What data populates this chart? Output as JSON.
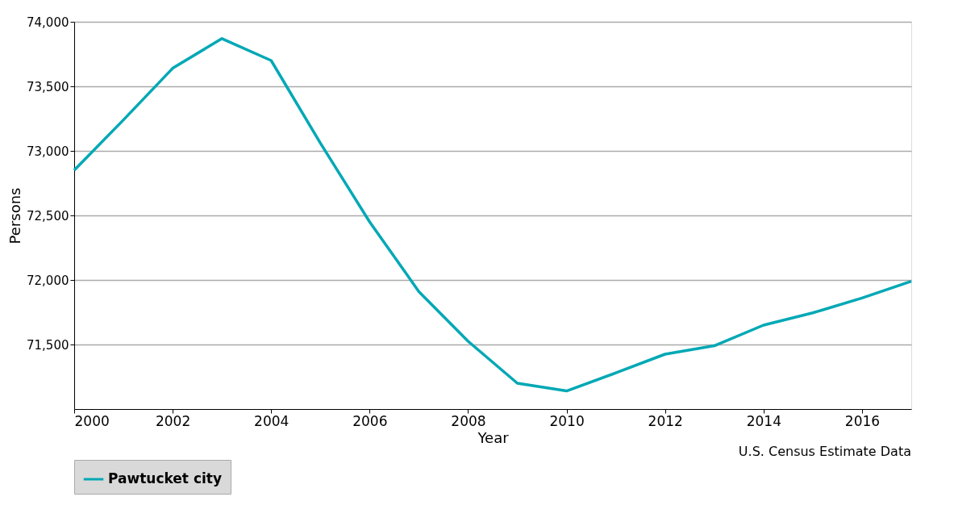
{
  "chart_data": {
    "type": "line",
    "xlabel": "Year",
    "ylabel": "Persons",
    "annotations": [
      "U.S. Census Estimate Data"
    ],
    "x": [
      2000,
      2001,
      2002,
      2003,
      2004,
      2005,
      2006,
      2007,
      2008,
      2009,
      2010,
      2011,
      2012,
      2013,
      2014,
      2015,
      2016,
      2017
    ],
    "series": [
      {
        "name": "Pawtucket city",
        "color": "#00a8b5",
        "values": [
          72850,
          73240,
          73640,
          73870,
          73700,
          73060,
          72450,
          71910,
          71525,
          71200,
          71140,
          71280,
          71425,
          71490,
          71650,
          71745,
          71860,
          71990
        ]
      }
    ],
    "xlim": [
      2000,
      2017
    ],
    "xticks": [
      2000,
      2002,
      2004,
      2006,
      2008,
      2010,
      2012,
      2014,
      2016
    ],
    "ylim": [
      71000,
      74000
    ],
    "yticks": [
      {
        "value": 71500,
        "label": "71,500"
      },
      {
        "value": 72000,
        "label": "72,000"
      },
      {
        "value": 72500,
        "label": "72,500"
      },
      {
        "value": 73000,
        "label": "73,000"
      },
      {
        "value": 73500,
        "label": "73,500"
      },
      {
        "value": 74000,
        "label": "74,000"
      }
    ],
    "grid": "y",
    "legend": "bottom",
    "marker": "none",
    "line_style": "solid"
  }
}
